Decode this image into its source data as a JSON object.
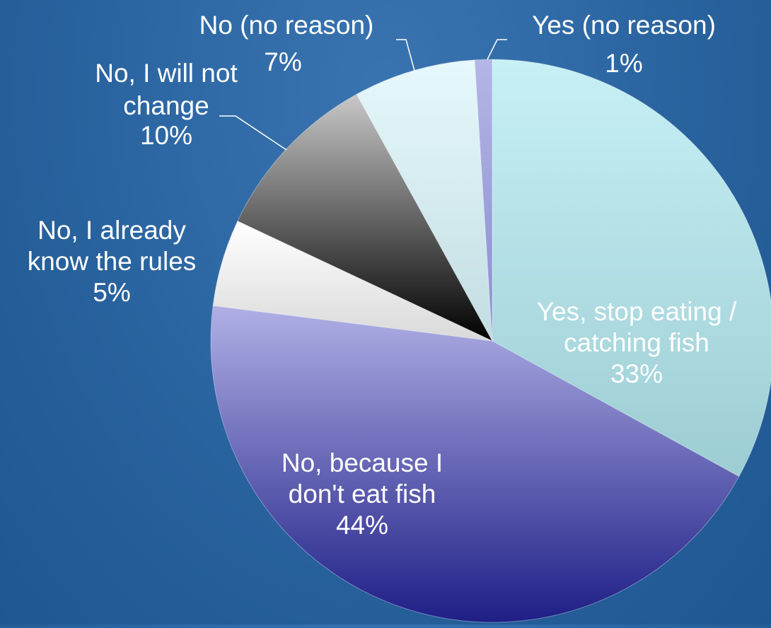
{
  "chart_data": {
    "type": "pie",
    "title": "",
    "slices": [
      {
        "label": "Yes, stop eating / catching fish",
        "label_lines": [
          "Yes, stop eating /",
          "catching fish"
        ],
        "value": 33,
        "value_text": "33%",
        "color_top": "#c7f0f5",
        "color_bottom": "#9ccdd3",
        "label_position": "inside"
      },
      {
        "label": "No, because I don't eat fish",
        "label_lines": [
          "No, because I",
          "don't eat fish"
        ],
        "value": 44,
        "value_text": "44%",
        "color_top": "#b0b0e6",
        "color_bottom": "#1e1e86",
        "label_position": "inside"
      },
      {
        "label": "No, I already know the rules",
        "label_lines": [
          "No, I already",
          "know the rules"
        ],
        "value": 5,
        "value_text": "5%",
        "color_top": "#ffffff",
        "color_bottom": "#d9d9d9",
        "label_position": "outside"
      },
      {
        "label": "No, I will not change",
        "label_lines": [
          "No, I will not",
          "change"
        ],
        "value": 10,
        "value_text": "10%",
        "color_top": "#c8c8c8",
        "color_bottom": "#000000",
        "label_position": "outside"
      },
      {
        "label": "No (no reason)",
        "label_lines": [
          "No (no reason)"
        ],
        "value": 7,
        "value_text": "7%",
        "color_top": "#e6f8fb",
        "color_bottom": "#c2dde2",
        "label_position": "outside"
      },
      {
        "label": "Yes (no reason)",
        "label_lines": [
          "Yes (no reason)"
        ],
        "value": 1,
        "value_text": "1%",
        "color_top": "#b4b6e6",
        "color_bottom": "#8a8cd0",
        "label_position": "outside"
      }
    ],
    "start_angle": "12 o'clock",
    "direction": "clockwise",
    "legend": "none",
    "colors": {
      "background": "#2f6aa6",
      "label_text": "#ffffff",
      "leader_line": "#ffffff"
    }
  }
}
